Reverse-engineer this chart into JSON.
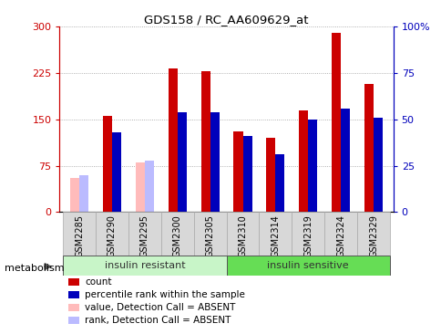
{
  "title": "GDS158 / RC_AA609629_at",
  "samples": [
    "GSM2285",
    "GSM2290",
    "GSM2295",
    "GSM2300",
    "GSM2305",
    "GSM2310",
    "GSM2314",
    "GSM2319",
    "GSM2324",
    "GSM2329"
  ],
  "count_values": [
    null,
    155,
    null,
    232,
    228,
    130,
    120,
    165,
    290,
    207
  ],
  "rank_values_pct": [
    null,
    43,
    null,
    54,
    54,
    41,
    31,
    50,
    56,
    51
  ],
  "absent_count": [
    55,
    null,
    80,
    null,
    null,
    null,
    null,
    null,
    null,
    null
  ],
  "absent_rank_pct": [
    20,
    null,
    28,
    null,
    null,
    null,
    null,
    null,
    null,
    null
  ],
  "group_colors": [
    "#c8f5c8",
    "#66dd55"
  ],
  "group_labels": [
    "insulin resistant",
    "insulin sensitive"
  ],
  "group_starts": [
    0,
    5
  ],
  "group_ends": [
    5,
    10
  ],
  "group_label": "metabolism",
  "ylim_left": [
    0,
    300
  ],
  "ylim_right": [
    0,
    100
  ],
  "left_yticks": [
    0,
    75,
    150,
    225,
    300
  ],
  "right_yticks": [
    0,
    25,
    50,
    75,
    100
  ],
  "right_yticklabels": [
    "0",
    "25",
    "50",
    "75",
    "100%"
  ],
  "color_red": "#cc0000",
  "color_blue": "#0000bb",
  "color_pink": "#ffbbbb",
  "color_lightblue": "#bbbbff",
  "background_color": "#ffffff",
  "plot_bg": "#ffffff",
  "xtick_bg": "#d8d8d8",
  "legend_items": [
    {
      "label": "count",
      "color": "#cc0000"
    },
    {
      "label": "percentile rank within the sample",
      "color": "#0000bb"
    },
    {
      "label": "value, Detection Call = ABSENT",
      "color": "#ffbbbb"
    },
    {
      "label": "rank, Detection Call = ABSENT",
      "color": "#bbbbff"
    }
  ]
}
